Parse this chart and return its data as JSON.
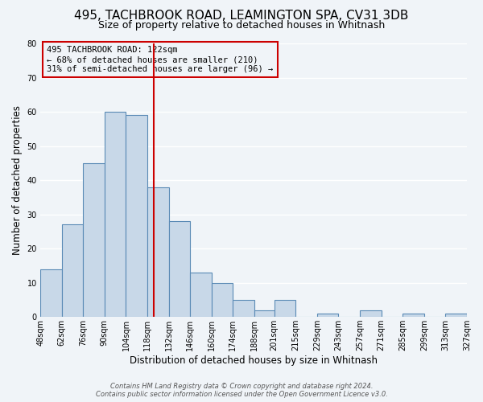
{
  "title_line1": "495, TACHBROOK ROAD, LEAMINGTON SPA, CV31 3DB",
  "title_line2": "Size of property relative to detached houses in Whitnash",
  "xlabel": "Distribution of detached houses by size in Whitnash",
  "ylabel": "Number of detached properties",
  "bar_values": [
    14,
    27,
    45,
    60,
    59,
    38,
    28,
    13,
    10,
    5,
    2,
    5,
    0,
    1,
    0,
    2,
    0,
    1,
    0,
    1
  ],
  "bin_edges": [
    48,
    62,
    76,
    90,
    104,
    118,
    132,
    146,
    160,
    174,
    188,
    201,
    215,
    229,
    243,
    257,
    271,
    285,
    299,
    313,
    327
  ],
  "tick_labels": [
    "48sqm",
    "62sqm",
    "76sqm",
    "90sqm",
    "104sqm",
    "118sqm",
    "132sqm",
    "146sqm",
    "160sqm",
    "174sqm",
    "188sqm",
    "201sqm",
    "215sqm",
    "229sqm",
    "243sqm",
    "257sqm",
    "271sqm",
    "285sqm",
    "299sqm",
    "313sqm",
    "327sqm"
  ],
  "bar_color": "#c8d8e8",
  "bar_edge_color": "#5a8ab5",
  "vline_x": 122,
  "vline_color": "#cc0000",
  "ylim": [
    0,
    80
  ],
  "yticks": [
    0,
    10,
    20,
    30,
    40,
    50,
    60,
    70,
    80
  ],
  "annotation_text": "495 TACHBROOK ROAD: 122sqm\n← 68% of detached houses are smaller (210)\n31% of semi-detached houses are larger (96) →",
  "annotation_box_edge_color": "#cc0000",
  "footer_line1": "Contains HM Land Registry data © Crown copyright and database right 2024.",
  "footer_line2": "Contains public sector information licensed under the Open Government Licence v3.0.",
  "background_color": "#f0f4f8",
  "grid_color": "#ffffff",
  "title_fontsize": 11,
  "subtitle_fontsize": 9,
  "label_fontsize": 8.5,
  "tick_fontsize": 7,
  "footer_fontsize": 6,
  "annot_fontsize": 7.5
}
